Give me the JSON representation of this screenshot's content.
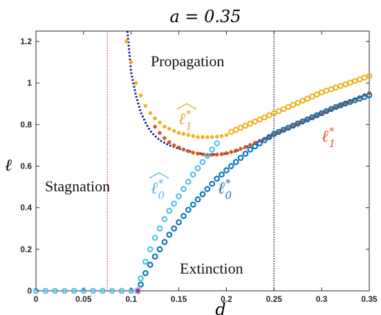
{
  "chart_data": {
    "type": "scatter",
    "title": "a = 0.35",
    "xlabel": "d",
    "ylabel": "ℓ",
    "xlim": [
      0,
      0.35
    ],
    "ylim": [
      0,
      1.25
    ],
    "xticks": [
      0,
      0.05,
      0.1,
      0.15,
      0.2,
      0.25,
      0.3,
      0.35
    ],
    "xtick_labels": [
      "0",
      "0.05",
      "0.1",
      "0.15",
      "0.2",
      "0.25",
      "0.3",
      "0.35"
    ],
    "yticks": [
      0,
      0.2,
      0.4,
      0.6,
      0.8,
      1,
      1.2
    ],
    "ytick_labels": [
      "0",
      "0.2",
      "0.4",
      "0.6",
      "0.8",
      "1",
      "1.2"
    ],
    "grid": false,
    "legend": "none",
    "vertical_lines": [
      {
        "x": 0.075,
        "color": "#e0306a",
        "style": "dotted"
      },
      {
        "x": 0.25,
        "color": "#000000",
        "style": "dotted"
      }
    ],
    "special_point": {
      "x": 0.107,
      "y": 0,
      "color": "#8b2fa6",
      "marker": "asterisk"
    },
    "regions": [
      "Propagation",
      "Stagnation",
      "Extinction"
    ],
    "annotations": {
      "l1_hat": {
        "base": "ℓ",
        "sub": "1",
        "sup": "*",
        "hat": true,
        "color": "#e8a92a"
      },
      "l1": {
        "base": "ℓ",
        "sub": "1",
        "sup": "*",
        "hat": false,
        "color": "#e0582a"
      },
      "l0_hat": {
        "base": "ℓ",
        "sub": "0",
        "sup": "*",
        "hat": true,
        "color": "#5ab4e5"
      },
      "l0": {
        "base": "ℓ",
        "sub": "0",
        "sup": "*",
        "hat": false,
        "color": "#1a6fb0"
      }
    },
    "series": [
      {
        "name": "ℓ̂₁*",
        "color": "#edb120",
        "marker": "asterisk",
        "x": [
          0.095,
          0.1,
          0.105,
          0.11,
          0.115,
          0.12,
          0.125,
          0.13,
          0.135,
          0.14,
          0.145,
          0.15,
          0.155,
          0.16,
          0.165,
          0.17,
          0.175,
          0.18,
          0.185,
          0.19,
          0.195,
          0.2
        ],
        "y": [
          1.2,
          1.1,
          1.0,
          0.94,
          0.89,
          0.855,
          0.83,
          0.81,
          0.79,
          0.78,
          0.77,
          0.76,
          0.755,
          0.75,
          0.745,
          0.74,
          0.74,
          0.74,
          0.74,
          0.742,
          0.745,
          0.75
        ]
      },
      {
        "name": "ℓ̂₁* (circles)",
        "color": "#edb120",
        "marker": "circle",
        "x": [
          0.205,
          0.21,
          0.215,
          0.22,
          0.225,
          0.23,
          0.235,
          0.24,
          0.245,
          0.25,
          0.255,
          0.26,
          0.265,
          0.27,
          0.275,
          0.28,
          0.285,
          0.29,
          0.295,
          0.3,
          0.305,
          0.31,
          0.315,
          0.32,
          0.325,
          0.33,
          0.335,
          0.34,
          0.345,
          0.35
        ],
        "y": [
          0.765,
          0.775,
          0.785,
          0.795,
          0.805,
          0.815,
          0.825,
          0.835,
          0.845,
          0.855,
          0.865,
          0.875,
          0.885,
          0.895,
          0.905,
          0.915,
          0.925,
          0.935,
          0.945,
          0.955,
          0.963,
          0.97,
          0.978,
          0.986,
          0.994,
          1.002,
          1.01,
          1.018,
          1.026,
          1.034
        ]
      },
      {
        "name": "ℓ₁*",
        "color": "#d95319",
        "marker": "asterisk",
        "x": [
          0.125,
          0.13,
          0.135,
          0.14,
          0.145,
          0.15,
          0.155,
          0.16,
          0.165,
          0.17,
          0.175,
          0.18,
          0.185,
          0.19,
          0.195,
          0.2,
          0.205,
          0.21,
          0.215,
          0.22,
          0.225,
          0.23,
          0.235,
          0.24,
          0.245,
          0.25,
          0.255,
          0.26,
          0.265,
          0.27,
          0.275,
          0.28,
          0.285,
          0.29,
          0.295,
          0.3,
          0.305,
          0.31,
          0.315,
          0.32,
          0.325,
          0.33,
          0.335,
          0.34,
          0.345,
          0.35
        ],
        "y": [
          0.79,
          0.76,
          0.735,
          0.715,
          0.7,
          0.69,
          0.68,
          0.672,
          0.665,
          0.66,
          0.657,
          0.655,
          0.655,
          0.656,
          0.658,
          0.662,
          0.668,
          0.675,
          0.683,
          0.692,
          0.702,
          0.712,
          0.722,
          0.732,
          0.742,
          0.752,
          0.762,
          0.772,
          0.782,
          0.792,
          0.802,
          0.812,
          0.822,
          0.832,
          0.842,
          0.852,
          0.862,
          0.872,
          0.882,
          0.892,
          0.902,
          0.912,
          0.922,
          0.932,
          0.942,
          0.952
        ]
      },
      {
        "name": "ℓ₁* (fit)",
        "color": "#1c1c8c",
        "marker": "dotted-line",
        "x": [
          0.096,
          0.1,
          0.105,
          0.11,
          0.115,
          0.12,
          0.125,
          0.13,
          0.14,
          0.15,
          0.16,
          0.17,
          0.18,
          0.19,
          0.2,
          0.21,
          0.22,
          0.23,
          0.24,
          0.25
        ],
        "y": [
          1.25,
          1.05,
          0.94,
          0.86,
          0.81,
          0.77,
          0.745,
          0.725,
          0.7,
          0.685,
          0.672,
          0.662,
          0.656,
          0.656,
          0.66,
          0.672,
          0.69,
          0.71,
          0.73,
          0.75
        ]
      },
      {
        "name": "ℓ̂₀*",
        "color": "#4dbeee",
        "marker": "circle",
        "x": [
          0,
          0.01,
          0.02,
          0.03,
          0.04,
          0.05,
          0.06,
          0.07,
          0.08,
          0.09,
          0.1,
          0.11,
          0.115,
          0.12,
          0.125,
          0.13,
          0.135,
          0.14,
          0.145,
          0.15,
          0.155,
          0.16,
          0.165,
          0.17,
          0.175,
          0.18,
          0.185,
          0.19
        ],
        "y": [
          0,
          0,
          0,
          0,
          0,
          0,
          0,
          0,
          0,
          0,
          0,
          0.06,
          0.14,
          0.2,
          0.255,
          0.3,
          0.345,
          0.385,
          0.42,
          0.455,
          0.49,
          0.525,
          0.56,
          0.59,
          0.62,
          0.65,
          0.68,
          0.71
        ]
      },
      {
        "name": "ℓ₀*",
        "color": "#0072bd",
        "marker": "circle",
        "x": [
          0.11,
          0.115,
          0.12,
          0.125,
          0.13,
          0.135,
          0.14,
          0.145,
          0.15,
          0.155,
          0.16,
          0.165,
          0.17,
          0.175,
          0.18,
          0.185,
          0.19,
          0.195,
          0.2,
          0.205,
          0.21,
          0.215,
          0.22,
          0.225,
          0.23,
          0.235,
          0.24,
          0.245,
          0.25,
          0.255,
          0.26,
          0.265,
          0.27,
          0.275,
          0.28,
          0.285,
          0.29,
          0.295,
          0.3,
          0.305,
          0.31,
          0.315,
          0.32,
          0.325,
          0.33,
          0.335,
          0.34,
          0.345,
          0.35
        ],
        "y": [
          0.03,
          0.085,
          0.125,
          0.165,
          0.2,
          0.235,
          0.27,
          0.3,
          0.33,
          0.36,
          0.39,
          0.415,
          0.44,
          0.465,
          0.49,
          0.515,
          0.54,
          0.56,
          0.58,
          0.6,
          0.62,
          0.64,
          0.66,
          0.68,
          0.695,
          0.71,
          0.725,
          0.74,
          0.755,
          0.765,
          0.775,
          0.785,
          0.795,
          0.805,
          0.815,
          0.825,
          0.835,
          0.845,
          0.855,
          0.865,
          0.875,
          0.885,
          0.893,
          0.901,
          0.909,
          0.917,
          0.925,
          0.933,
          0.941
        ]
      }
    ]
  }
}
